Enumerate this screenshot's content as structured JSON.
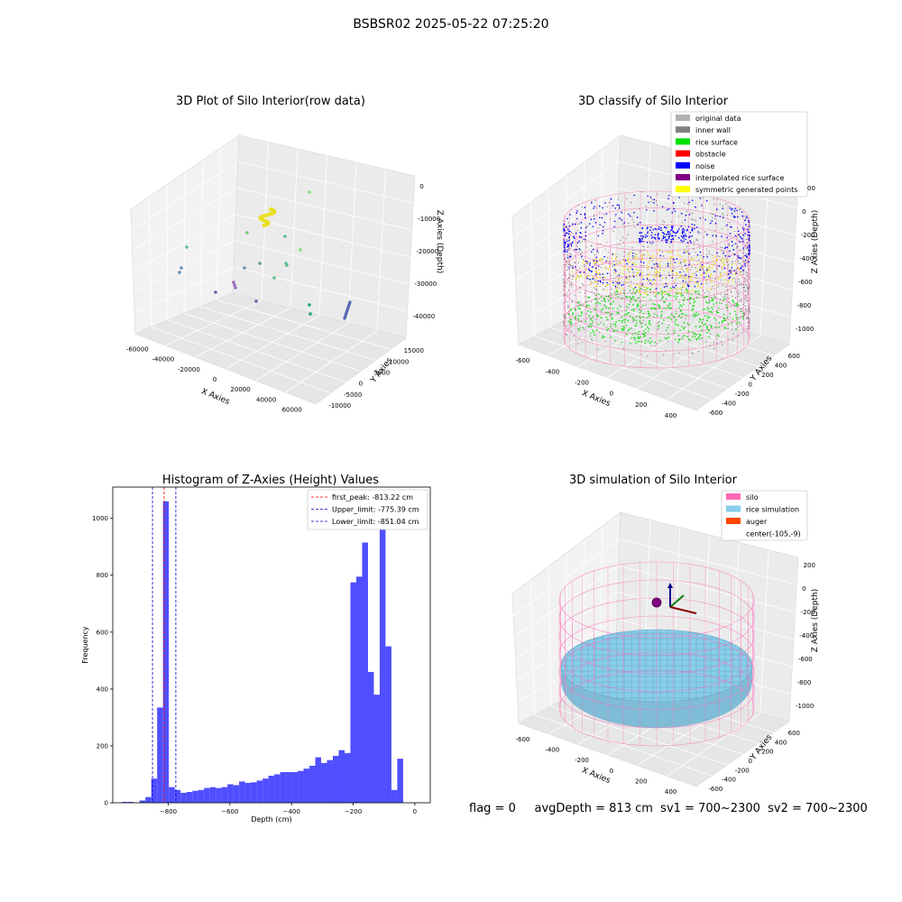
{
  "suptitle": "BSBSR02 2025-05-22 07:25:20",
  "chart_data": [
    {
      "type": "scatter",
      "title": "3D Plot of Silo Interior(row data)",
      "xlabel": "X Axies",
      "ylabel": "Y Axies",
      "zlabel": "Z Axies (Depth)",
      "x_ticks": [
        "-60000",
        "-40000",
        "-20000",
        "0",
        "20000",
        "40000",
        "60000"
      ],
      "y_ticks": [
        "-10000",
        "-5000",
        "0",
        "5000",
        "10000",
        "15000"
      ],
      "z_ticks": [
        "0",
        "-10000",
        "-20000",
        "-30000",
        "-40000"
      ]
    },
    {
      "type": "scatter",
      "title": "3D classify of Silo Interior",
      "xlabel": "X Axies",
      "ylabel": "Y Axies",
      "zlabel": "Z Axies (Depth)",
      "x_ticks": [
        "-600",
        "-400",
        "-200",
        "0",
        "200",
        "400"
      ],
      "y_ticks": [
        "-600",
        "-400",
        "-200",
        "0",
        "200",
        "400",
        "600"
      ],
      "z_ticks": [
        "200",
        "0",
        "-200",
        "-400",
        "-600",
        "-800",
        "-1000"
      ],
      "legend_position": "top-right",
      "legend": [
        {
          "label": "original data",
          "color": "#b0b0b0"
        },
        {
          "label": "inner wall",
          "color": "#808080"
        },
        {
          "label": "rice surface",
          "color": "#00e000"
        },
        {
          "label": "obstacle",
          "color": "#ff0000"
        },
        {
          "label": "noise",
          "color": "#0000ff"
        },
        {
          "label": "interpolated rice surface",
          "color": "#800080"
        },
        {
          "label": "symmetric generated points",
          "color": "#ffff00"
        }
      ]
    },
    {
      "type": "bar",
      "title": "Histogram of Z-Axies (Height) Values",
      "xlabel": "Depth (cm)",
      "ylabel": "Frequency",
      "xlim": [
        -980,
        50
      ],
      "ylim": [
        0,
        1110
      ],
      "x_ticks": [
        -800,
        -600,
        -400,
        -200,
        0
      ],
      "y_ticks": [
        0,
        200,
        400,
        600,
        800,
        1000
      ],
      "bar_color": "#4040ff",
      "bin_start": -950,
      "bin_width": 19,
      "counts": [
        3,
        3,
        0,
        8,
        20,
        85,
        335,
        1060,
        55,
        45,
        35,
        38,
        42,
        45,
        52,
        55,
        52,
        55,
        65,
        62,
        75,
        70,
        72,
        78,
        85,
        95,
        100,
        108,
        108,
        108,
        112,
        120,
        130,
        160,
        140,
        150,
        165,
        185,
        175,
        775,
        795,
        915,
        460,
        380,
        965,
        550,
        45,
        155
      ],
      "vlines": [
        {
          "label": "first_peak: -813.22 cm",
          "x": -813.22,
          "color": "#ff0000"
        },
        {
          "label": "Upper_limit: -775.39 cm",
          "x": -775.39,
          "color": "#0000cc"
        },
        {
          "label": "Lower_limit: -851.04 cm",
          "x": -851.04,
          "color": "#0000cc"
        }
      ],
      "legend_position": "top-right"
    },
    {
      "type": "scatter",
      "title": "3D simulation of Silo Interior",
      "xlabel": "X Axies",
      "ylabel": "Y Axies",
      "zlabel": "Z Axies (Depth)",
      "x_ticks": [
        "-600",
        "-400",
        "-200",
        "0",
        "200",
        "400"
      ],
      "y_ticks": [
        "-600",
        "-400",
        "-200",
        "0",
        "200",
        "400",
        "600"
      ],
      "z_ticks": [
        "200",
        "0",
        "-200",
        "-400",
        "-600",
        "-800",
        "-1000"
      ],
      "legend_position": "top-right",
      "legend": [
        {
          "label": "silo",
          "color": "#ff69b4"
        },
        {
          "label": "rice simulation",
          "color": "#87ceeb"
        },
        {
          "label": "auger",
          "color": "#ff4500"
        },
        {
          "label": "center(-105,-9)",
          "color": ""
        }
      ]
    }
  ],
  "footer": "flag = 0     avgDepth = 813 cm  sv1 = 700~2300  sv2 = 700~2300"
}
